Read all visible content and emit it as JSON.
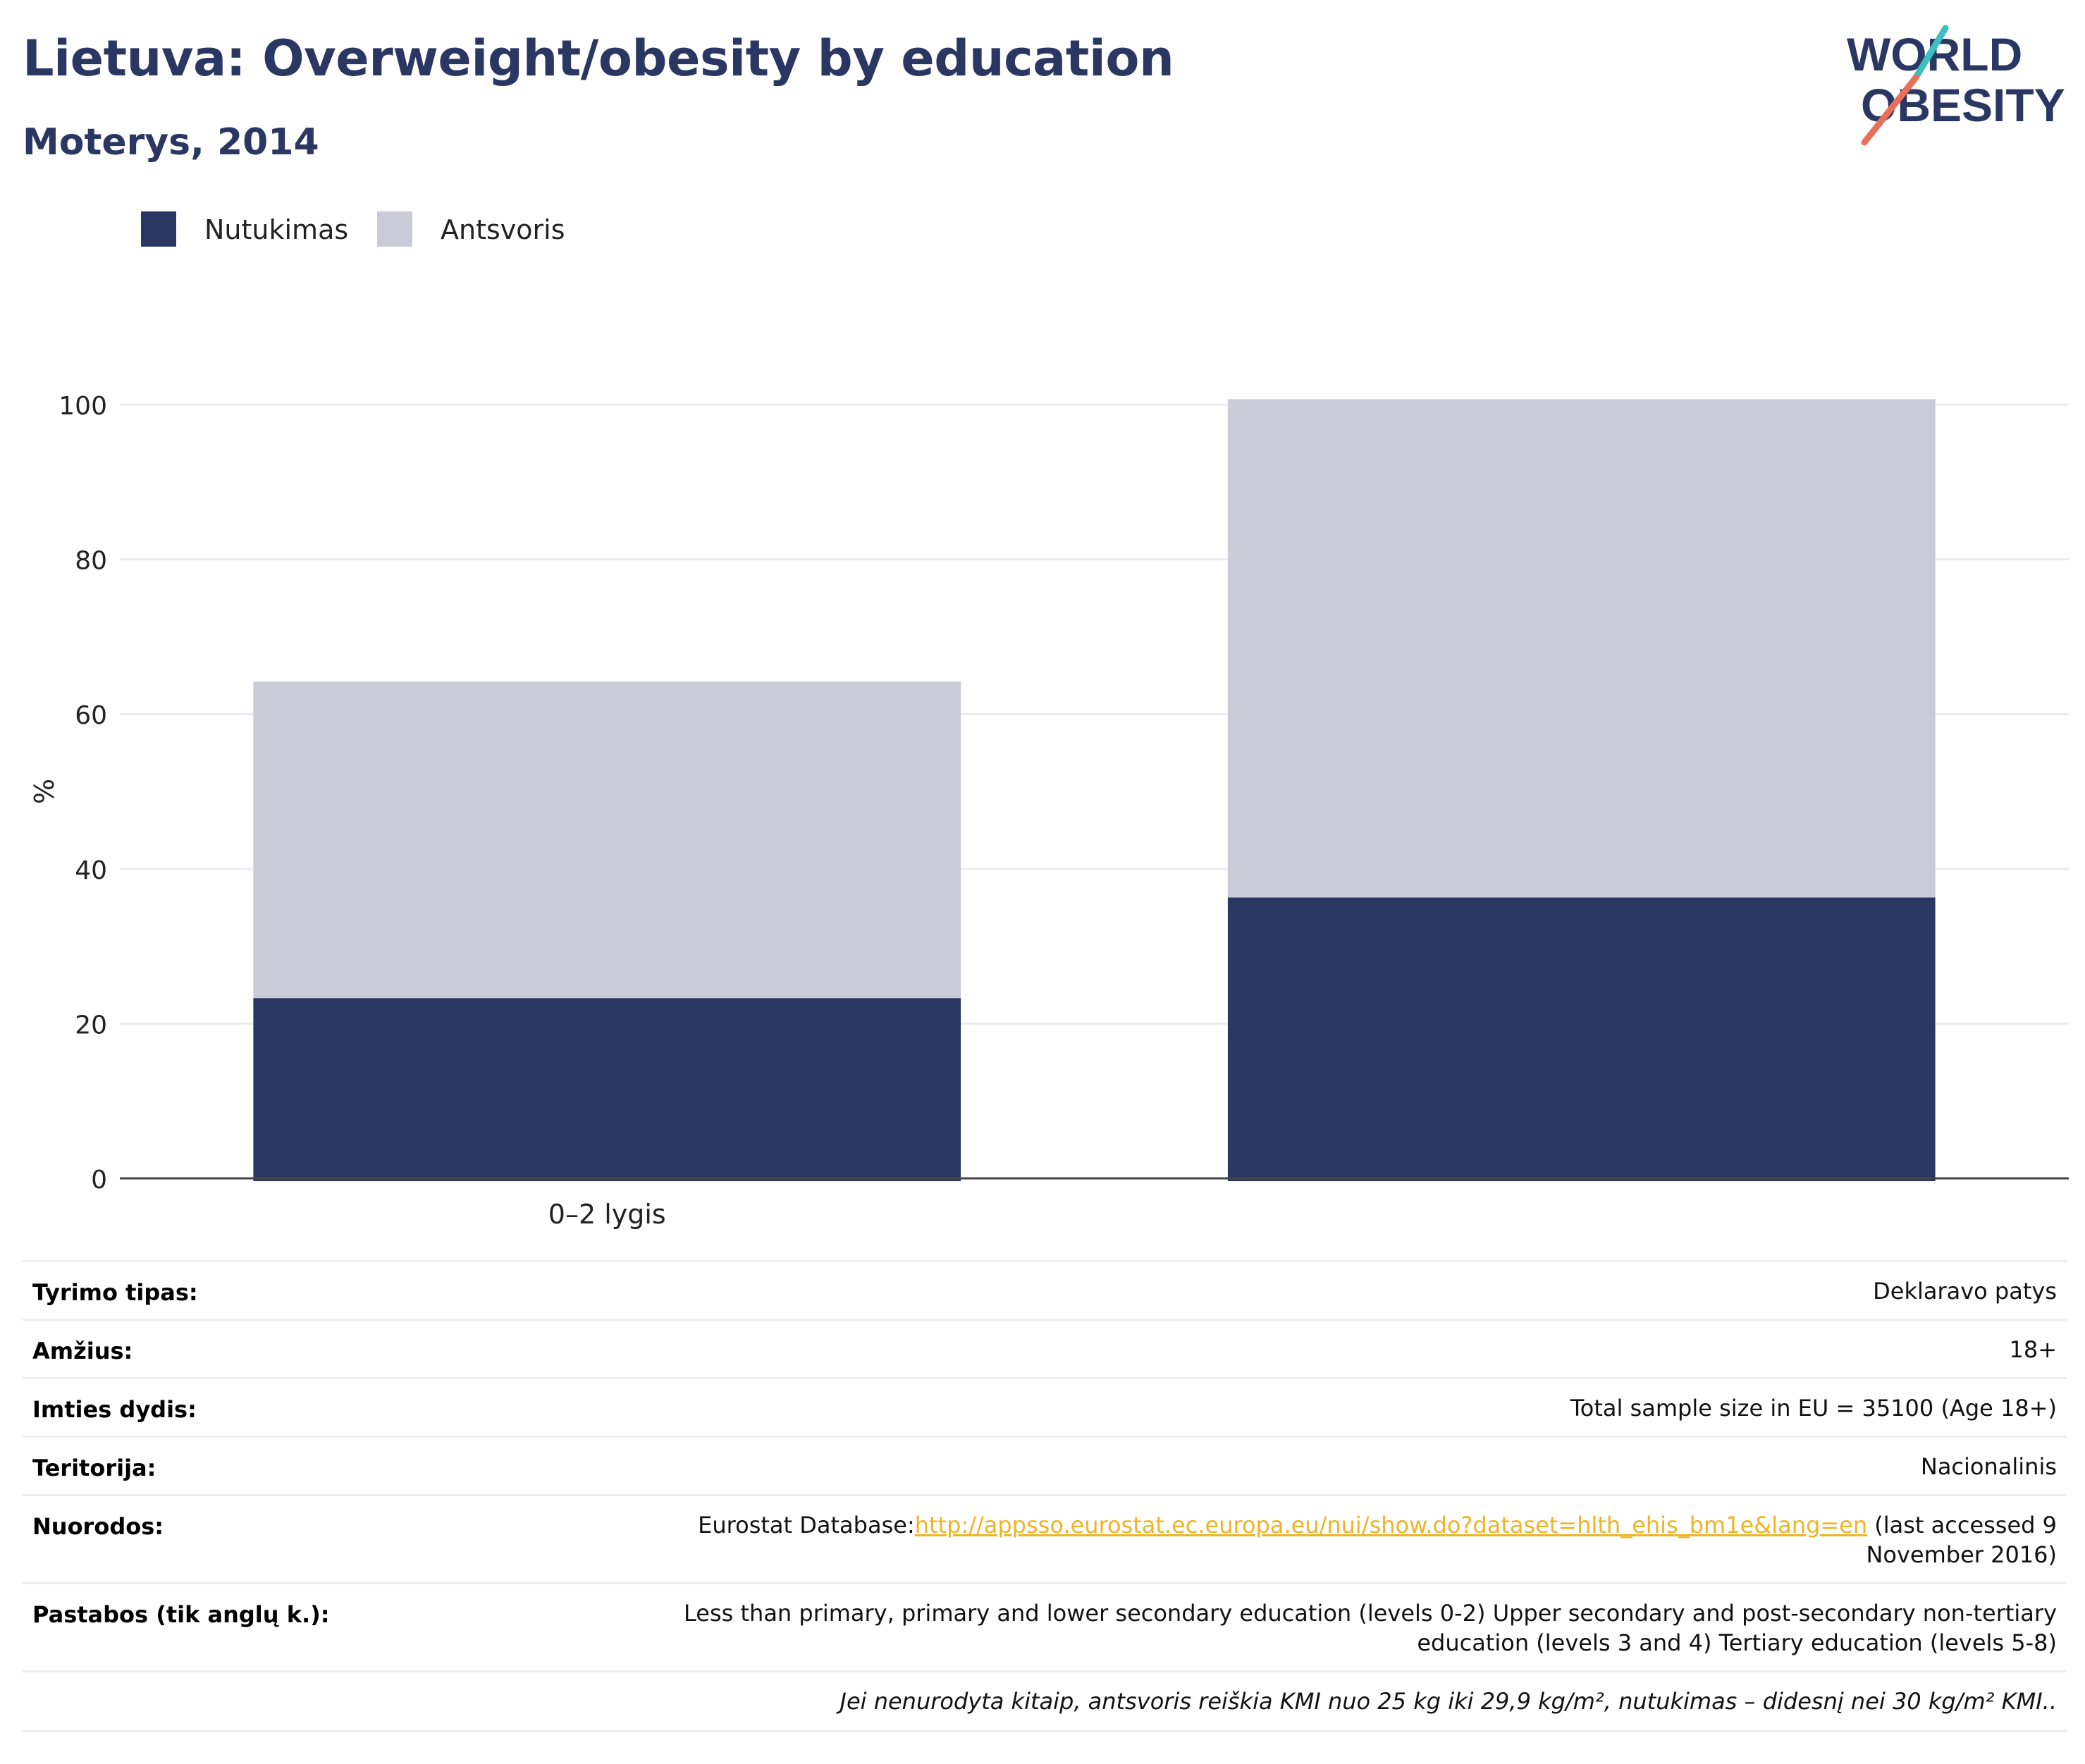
{
  "header": {
    "title": "Lietuva: Overweight/obesity by education",
    "subtitle": "Moterys, 2014",
    "logo_line1": "WORLD",
    "logo_line2": "OBESITY"
  },
  "colors": {
    "title": "#2a3763",
    "obesity": "#2a3763",
    "overweight": "#c9ccd7",
    "link": "#f0b323",
    "logo_teal": "#3bbfc0",
    "logo_coral": "#e8705a"
  },
  "legend": [
    {
      "label": "Nutukimas",
      "color": "#2a3763"
    },
    {
      "label": "Antsvoris",
      "color": "#c9ccd7"
    }
  ],
  "chart_data": {
    "type": "bar",
    "stacked": true,
    "categories": [
      "0–2 lygis",
      ""
    ],
    "series": [
      {
        "name": "Nutukimas",
        "values": [
          23.3,
          36.3
        ]
      },
      {
        "name": "Antsvoris",
        "values": [
          40.9,
          64.4
        ]
      }
    ],
    "ylabel": "%",
    "yticks": [
      0,
      20,
      40,
      60,
      80,
      100
    ],
    "ylim": [
      0,
      105
    ],
    "grid": true,
    "legend_position": "top-left"
  },
  "info": {
    "rows": [
      {
        "label": "Tyrimo tipas:",
        "value": "Deklaravo patys"
      },
      {
        "label": "Amžius:",
        "value": "18+"
      },
      {
        "label": "Imties dydis:",
        "value": "Total sample size in EU = 35100 (Age 18+)"
      },
      {
        "label": "Teritorija:",
        "value": "Nacionalinis"
      }
    ],
    "references": {
      "label": "Nuorodos:",
      "prefix": "Eurostat Database:",
      "link": "http://appsso.eurostat.ec.europa.eu/nui/show.do?dataset=hlth_ehis_bm1e&lang=en",
      "suffix": " (last accessed 9 November 2016)"
    },
    "notes": {
      "label": "Pastabos (tik anglų k.):",
      "value": "Less than primary, primary and lower secondary education (levels 0-2) Upper secondary and post-secondary non-tertiary education (levels 3 and 4) Tertiary education (levels 5-8)"
    },
    "footnote": "Jei nenurodyta kitaip, antsvoris reiškia KMI nuo 25 kg iki 29,9 kg/m², nutukimas – didesnį nei 30 kg/m² KMI.."
  }
}
